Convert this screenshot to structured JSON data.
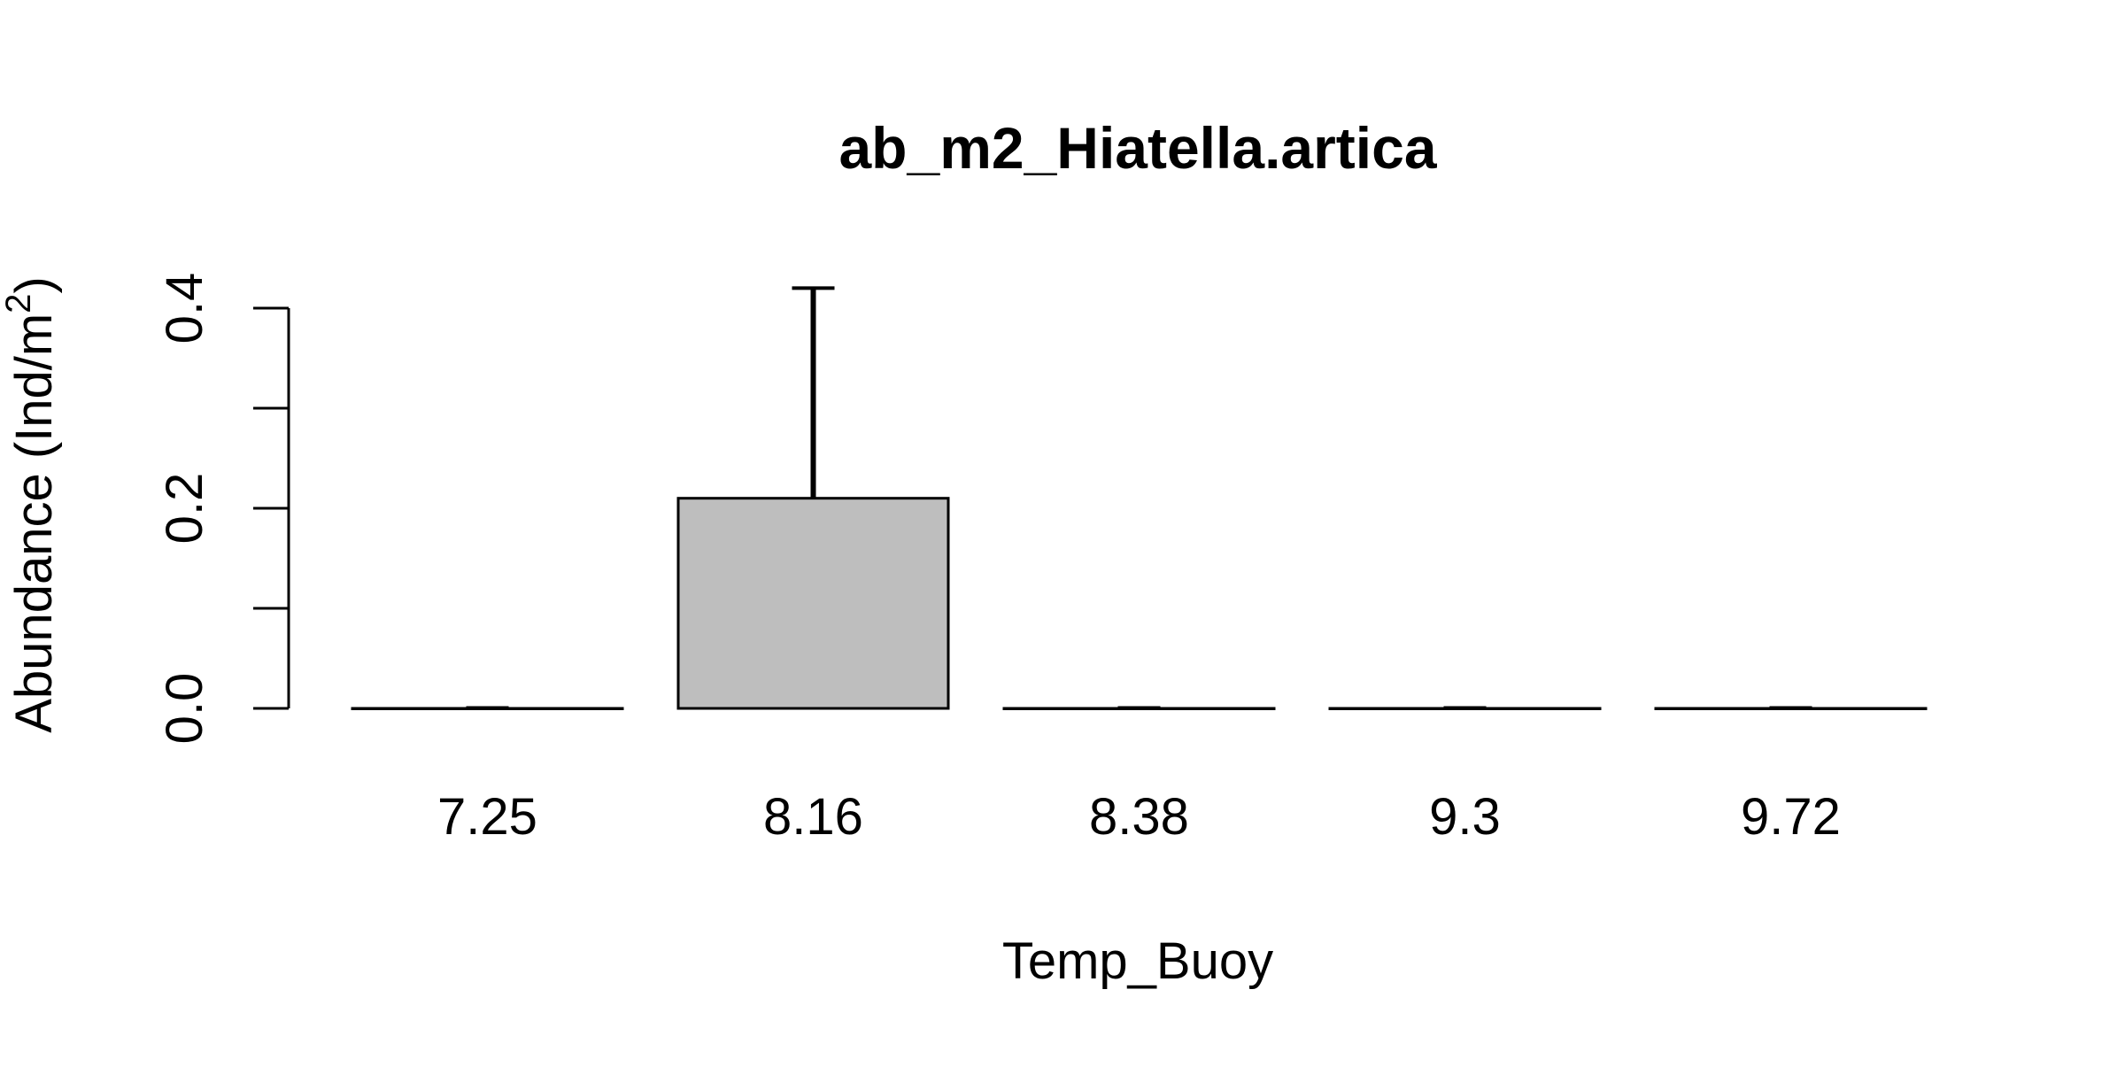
{
  "chart_data": {
    "type": "bar",
    "title": "ab_m2_Hiatella.artica",
    "xlabel": "Temp_Buoy",
    "ylabel": "Abundance (Ind/m",
    "ylabel_superscript": "2",
    "ylabel_suffix": ")",
    "categories": [
      "7.25",
      "8.16",
      "8.38",
      "9.3",
      "9.72"
    ],
    "values": [
      0,
      0.21,
      0,
      0,
      0
    ],
    "error_upper": [
      0,
      0.42,
      0,
      0,
      0
    ],
    "ylim": [
      0,
      0.4
    ],
    "yticks": [
      0,
      0.1,
      0.2,
      0.3,
      0.4
    ],
    "ytick_labels": [
      "0.0",
      "",
      "0.2",
      "",
      "0.4"
    ],
    "grid": false,
    "legend": "none",
    "bar_color": "#bebebe",
    "bar_edge_color": "#000000"
  }
}
